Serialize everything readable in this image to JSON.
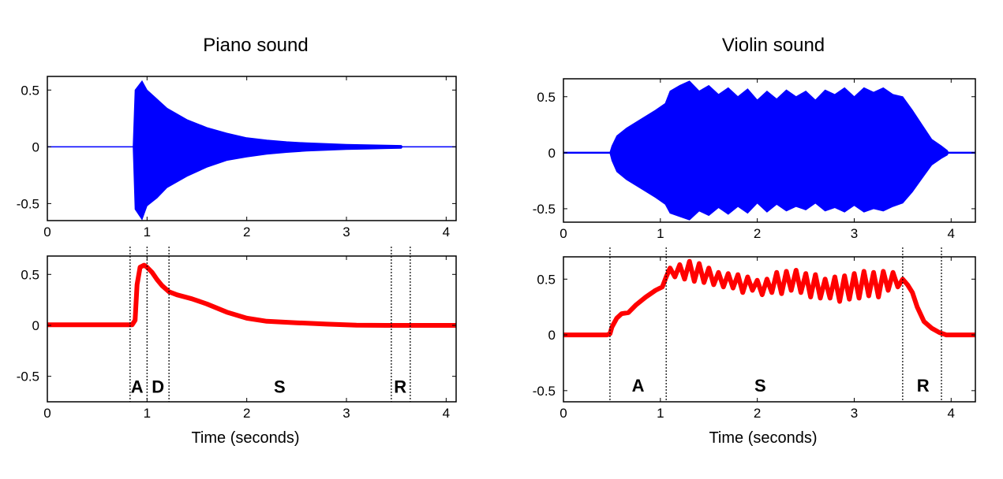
{
  "colors": {
    "waveform": "#0000ff",
    "envelope": "#ff0000",
    "axis": "#000000",
    "marker": "#000000"
  },
  "chart_data": [
    {
      "id": "piano-waveform",
      "type": "area",
      "title": "Piano sound",
      "xlabel": "",
      "ylabel": "",
      "xlim": [
        0,
        4.1
      ],
      "ylim": [
        -0.65,
        0.62
      ],
      "xticks": [
        0,
        1,
        2,
        3,
        4
      ],
      "yticks": [
        0.5,
        0,
        -0.5
      ],
      "ytick_labels": [
        "0.5",
        "0",
        "-0.5"
      ],
      "grid": false,
      "series": [
        {
          "color": "#0000ff",
          "x": [
            0,
            0.86,
            0.88,
            0.95,
            1.0,
            1.1,
            1.2,
            1.4,
            1.6,
            1.8,
            2.0,
            2.2,
            2.4,
            2.6,
            2.8,
            3.0,
            3.2,
            3.4,
            3.55,
            3.56,
            4.1
          ],
          "upper": [
            0.002,
            0.002,
            0.5,
            0.58,
            0.5,
            0.42,
            0.34,
            0.24,
            0.17,
            0.12,
            0.08,
            0.06,
            0.045,
            0.035,
            0.028,
            0.022,
            0.018,
            0.015,
            0.012,
            0.002,
            0.002
          ],
          "lower": [
            -0.002,
            -0.002,
            -0.55,
            -0.64,
            -0.52,
            -0.45,
            -0.36,
            -0.26,
            -0.18,
            -0.12,
            -0.09,
            -0.065,
            -0.05,
            -0.038,
            -0.03,
            -0.024,
            -0.02,
            -0.016,
            -0.013,
            -0.002,
            -0.002
          ]
        }
      ]
    },
    {
      "id": "piano-envelope",
      "type": "line",
      "title": "",
      "xlabel": "Time (seconds)",
      "ylabel": "",
      "xlim": [
        0,
        4.1
      ],
      "ylim": [
        -0.75,
        0.68
      ],
      "xticks": [
        0,
        1,
        2,
        3,
        4
      ],
      "yticks": [
        0.5,
        0,
        -0.5
      ],
      "ytick_labels": [
        "0.5",
        "0",
        "-0.5"
      ],
      "grid": false,
      "series": [
        {
          "color": "#ff0000",
          "x": [
            0,
            0.85,
            0.88,
            0.9,
            0.93,
            0.97,
            1.0,
            1.05,
            1.1,
            1.15,
            1.22,
            1.3,
            1.45,
            1.6,
            1.8,
            2.0,
            2.2,
            2.5,
            2.8,
            3.1,
            3.4,
            3.7,
            4.1
          ],
          "y": [
            0.005,
            0.005,
            0.05,
            0.4,
            0.57,
            0.59,
            0.57,
            0.52,
            0.45,
            0.39,
            0.33,
            0.3,
            0.26,
            0.21,
            0.13,
            0.07,
            0.04,
            0.025,
            0.012,
            0.002,
            0,
            0,
            0
          ]
        }
      ],
      "markers": [
        0.83,
        1.0,
        1.22,
        3.45,
        3.64
      ],
      "annotations": [
        {
          "text": "A",
          "x": 0.9,
          "y": -0.6
        },
        {
          "text": "D",
          "x": 1.11,
          "y": -0.6
        },
        {
          "text": "S",
          "x": 2.33,
          "y": -0.6
        },
        {
          "text": "R",
          "x": 3.54,
          "y": -0.6
        }
      ]
    },
    {
      "id": "violin-waveform",
      "type": "area",
      "title": "Violin sound",
      "xlabel": "",
      "ylabel": "",
      "xlim": [
        0,
        4.25
      ],
      "ylim": [
        -0.62,
        0.66
      ],
      "xticks": [
        0,
        1,
        2,
        3,
        4
      ],
      "yticks": [
        0.5,
        0,
        -0.5
      ],
      "ytick_labels": [
        "0.5",
        "0",
        "-0.5"
      ],
      "grid": false,
      "series": [
        {
          "color": "#0000ff",
          "x": [
            0,
            0.48,
            0.5,
            0.55,
            0.65,
            0.8,
            0.95,
            1.05,
            1.1,
            1.2,
            1.3,
            1.4,
            1.5,
            1.6,
            1.7,
            1.8,
            1.9,
            2.0,
            2.1,
            2.2,
            2.3,
            2.4,
            2.5,
            2.6,
            2.7,
            2.8,
            2.9,
            3.0,
            3.1,
            3.2,
            3.3,
            3.4,
            3.5,
            3.6,
            3.7,
            3.8,
            3.9,
            3.96,
            3.97,
            4.25
          ],
          "upper": [
            0.005,
            0.005,
            0.06,
            0.15,
            0.22,
            0.3,
            0.38,
            0.44,
            0.55,
            0.6,
            0.64,
            0.55,
            0.6,
            0.52,
            0.58,
            0.5,
            0.57,
            0.47,
            0.55,
            0.48,
            0.56,
            0.5,
            0.55,
            0.47,
            0.56,
            0.52,
            0.58,
            0.5,
            0.58,
            0.54,
            0.58,
            0.52,
            0.5,
            0.38,
            0.25,
            0.12,
            0.06,
            0.02,
            0.005,
            0.005
          ],
          "lower": [
            -0.005,
            -0.005,
            -0.07,
            -0.17,
            -0.24,
            -0.32,
            -0.4,
            -0.46,
            -0.54,
            -0.57,
            -0.6,
            -0.52,
            -0.56,
            -0.49,
            -0.55,
            -0.48,
            -0.54,
            -0.45,
            -0.53,
            -0.46,
            -0.52,
            -0.48,
            -0.51,
            -0.45,
            -0.52,
            -0.49,
            -0.53,
            -0.47,
            -0.53,
            -0.5,
            -0.52,
            -0.48,
            -0.45,
            -0.35,
            -0.23,
            -0.11,
            -0.05,
            -0.02,
            -0.005,
            -0.005
          ]
        }
      ]
    },
    {
      "id": "violin-envelope",
      "type": "line",
      "title": "",
      "xlabel": "Time (seconds)",
      "ylabel": "",
      "xlim": [
        0,
        4.25
      ],
      "ylim": [
        -0.6,
        0.7
      ],
      "xticks": [
        0,
        1,
        2,
        3,
        4
      ],
      "yticks": [
        0.5,
        0,
        -0.5
      ],
      "ytick_labels": [
        "0.5",
        "0",
        "-0.5"
      ],
      "grid": false,
      "series": [
        {
          "color": "#ff0000",
          "x": [
            0,
            0.45,
            0.48,
            0.5,
            0.55,
            0.6,
            0.67,
            0.75,
            0.85,
            0.95,
            1.02,
            1.06,
            1.1,
            1.15,
            1.2,
            1.25,
            1.3,
            1.35,
            1.4,
            1.45,
            1.5,
            1.55,
            1.6,
            1.65,
            1.7,
            1.75,
            1.8,
            1.85,
            1.9,
            1.95,
            2.0,
            2.05,
            2.1,
            2.15,
            2.2,
            2.25,
            2.3,
            2.35,
            2.4,
            2.45,
            2.5,
            2.55,
            2.6,
            2.65,
            2.7,
            2.75,
            2.8,
            2.85,
            2.9,
            2.95,
            3.0,
            3.05,
            3.1,
            3.15,
            3.2,
            3.25,
            3.3,
            3.35,
            3.4,
            3.45,
            3.5,
            3.55,
            3.6,
            3.65,
            3.72,
            3.8,
            3.88,
            3.95,
            4.05,
            4.25
          ],
          "y": [
            0,
            0,
            0.01,
            0.07,
            0.15,
            0.19,
            0.2,
            0.27,
            0.34,
            0.4,
            0.43,
            0.52,
            0.6,
            0.52,
            0.63,
            0.5,
            0.66,
            0.48,
            0.64,
            0.47,
            0.6,
            0.45,
            0.56,
            0.43,
            0.55,
            0.42,
            0.54,
            0.38,
            0.52,
            0.4,
            0.49,
            0.36,
            0.5,
            0.38,
            0.56,
            0.37,
            0.57,
            0.4,
            0.58,
            0.38,
            0.55,
            0.34,
            0.54,
            0.33,
            0.5,
            0.33,
            0.52,
            0.3,
            0.53,
            0.32,
            0.55,
            0.33,
            0.57,
            0.35,
            0.56,
            0.34,
            0.57,
            0.4,
            0.56,
            0.43,
            0.5,
            0.45,
            0.38,
            0.25,
            0.12,
            0.06,
            0.02,
            0,
            0,
            0
          ]
        }
      ],
      "markers": [
        0.48,
        1.06,
        3.5,
        3.9
      ],
      "annotations": [
        {
          "text": "A",
          "x": 0.77,
          "y": -0.45
        },
        {
          "text": "S",
          "x": 2.03,
          "y": -0.45
        },
        {
          "text": "R",
          "x": 3.71,
          "y": -0.45
        }
      ]
    }
  ]
}
